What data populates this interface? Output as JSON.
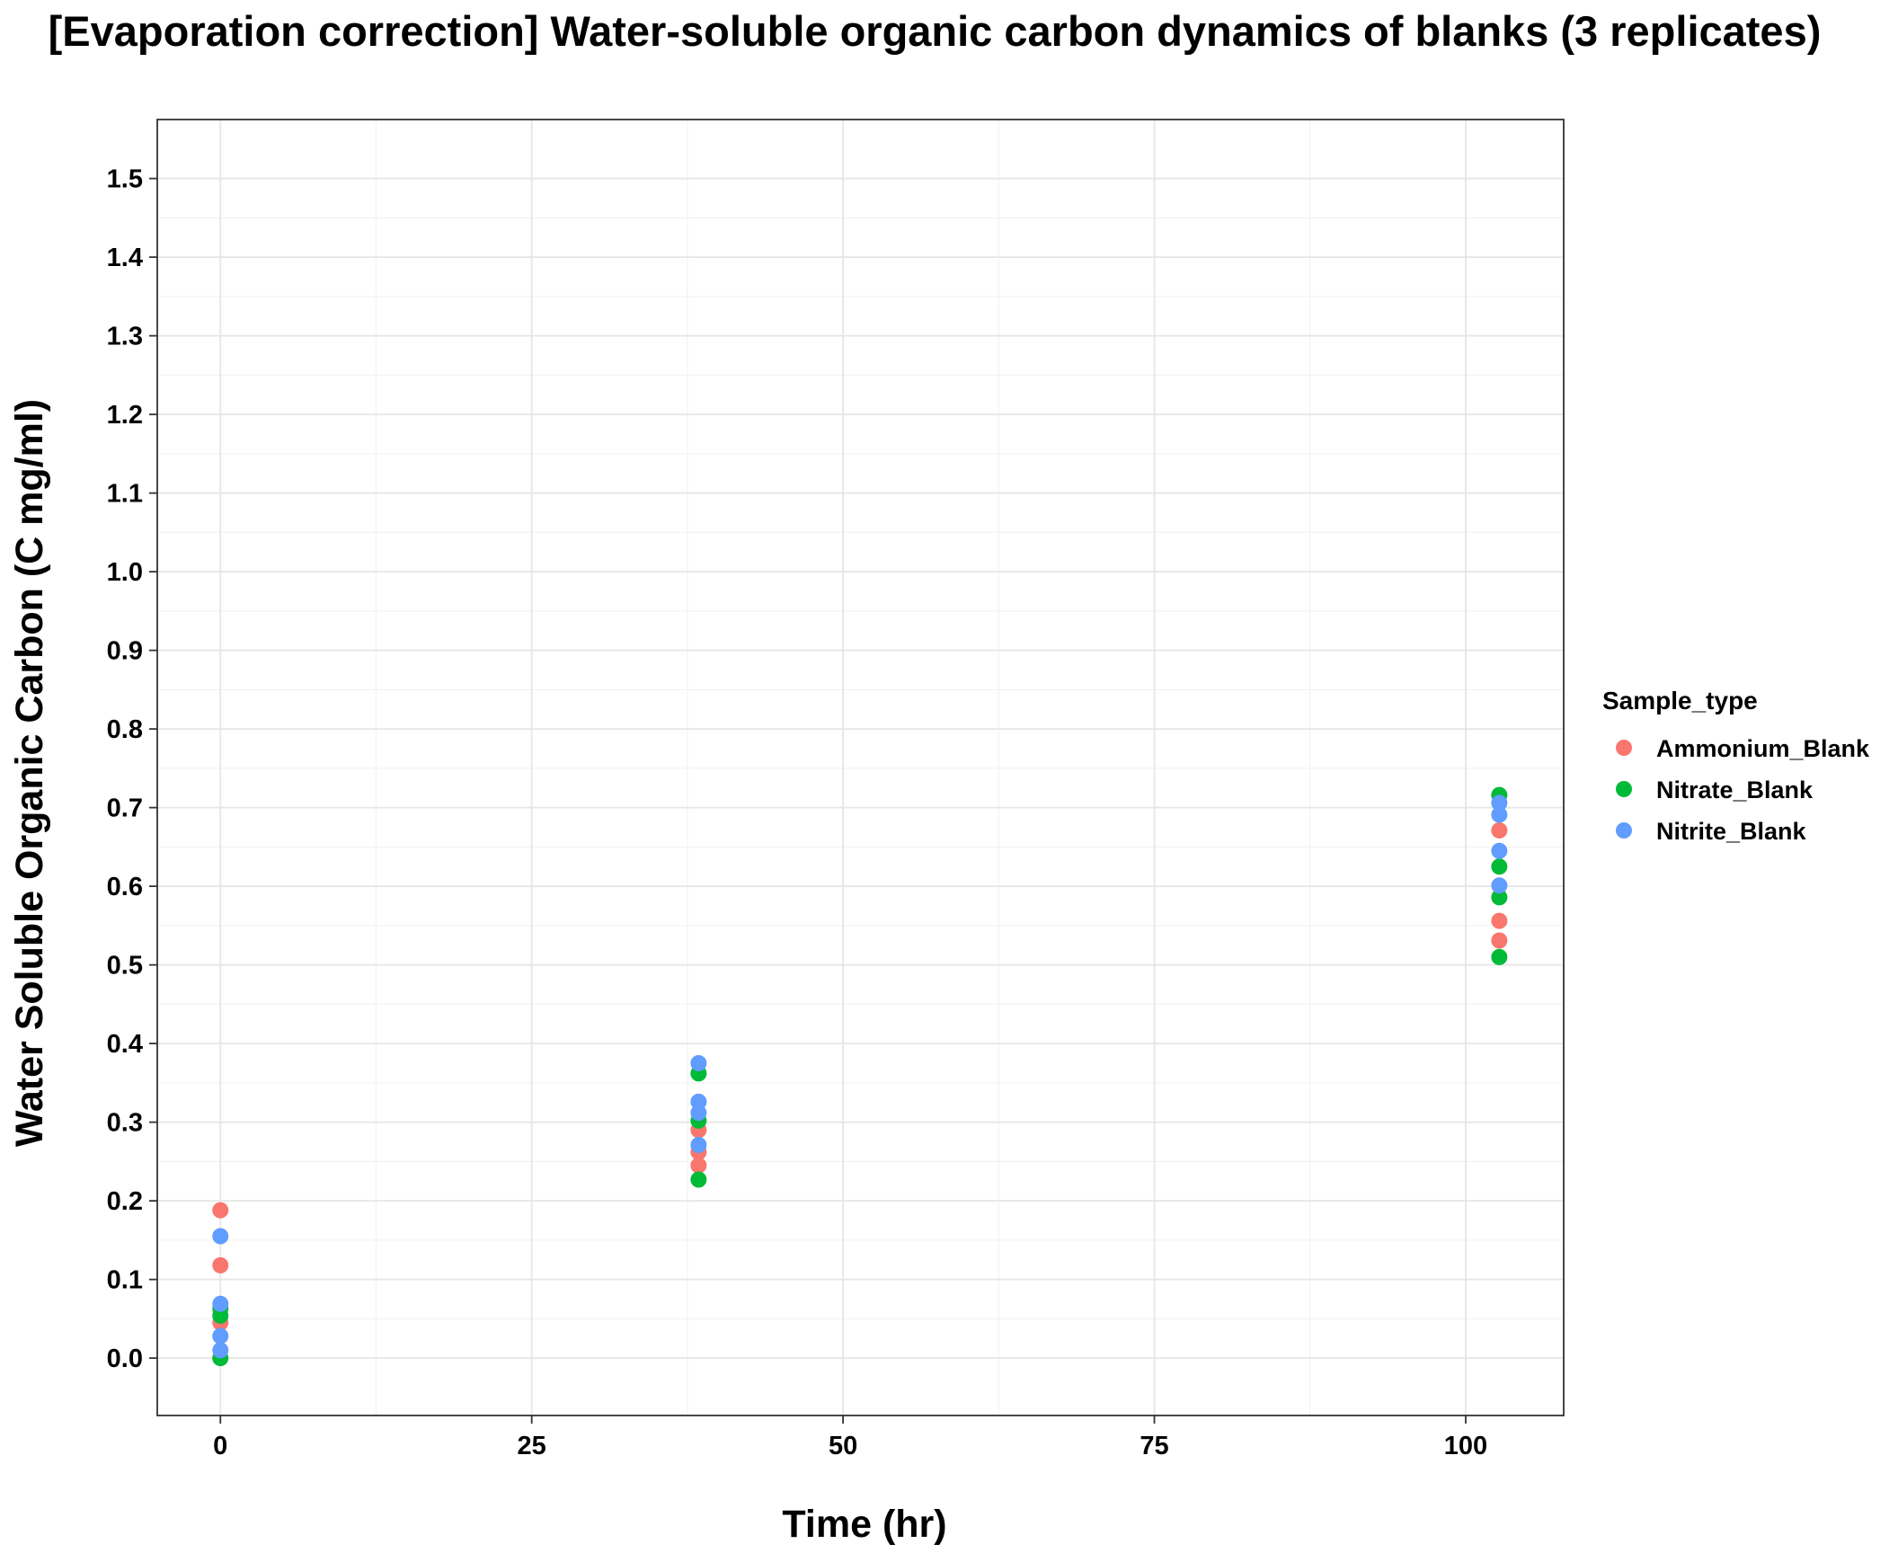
{
  "chart_data": {
    "type": "scatter",
    "title": "[Evaporation correction] Water-soluble organic carbon dynamics of blanks (3 replicates)",
    "xlabel": "Time (hr)",
    "ylabel": "Water Soluble Organic Carbon (C mg/ml)",
    "xlim": [
      -5.07,
      107.87
    ],
    "ylim": [
      -0.073,
      1.575
    ],
    "x_ticks": [
      0,
      25,
      50,
      75,
      100
    ],
    "x_tick_labels": [
      "0",
      "25",
      "50",
      "75",
      "100"
    ],
    "y_ticks": [
      0.0,
      0.1,
      0.2,
      0.3,
      0.4,
      0.5,
      0.6,
      0.7,
      0.8,
      0.9,
      1.0,
      1.1,
      1.2,
      1.3,
      1.4,
      1.5
    ],
    "y_tick_labels": [
      "0.0",
      "0.1",
      "0.2",
      "0.3",
      "0.4",
      "0.5",
      "0.6",
      "0.7",
      "0.8",
      "0.9",
      "1.0",
      "1.1",
      "1.2",
      "1.3",
      "1.4",
      "1.5"
    ],
    "grid": true,
    "legend": {
      "title": "Sample_type",
      "position": "right"
    },
    "series": [
      {
        "name": "Ammonium_Blank",
        "color": "#F8766D",
        "points": [
          {
            "x": 0,
            "y": 0.188
          },
          {
            "x": 0,
            "y": 0.118
          },
          {
            "x": 0,
            "y": 0.045
          },
          {
            "x": 38.4,
            "y": 0.29
          },
          {
            "x": 38.4,
            "y": 0.262
          },
          {
            "x": 38.4,
            "y": 0.245
          },
          {
            "x": 102.7,
            "y": 0.671
          },
          {
            "x": 102.7,
            "y": 0.556
          },
          {
            "x": 102.7,
            "y": 0.531
          }
        ]
      },
      {
        "name": "Nitrate_Blank",
        "color": "#00BA38",
        "points": [
          {
            "x": 0,
            "y": 0.063
          },
          {
            "x": 0,
            "y": 0.054
          },
          {
            "x": 0,
            "y": 0.0
          },
          {
            "x": 38.4,
            "y": 0.362
          },
          {
            "x": 38.4,
            "y": 0.302
          },
          {
            "x": 38.4,
            "y": 0.227
          },
          {
            "x": 102.7,
            "y": 0.716
          },
          {
            "x": 102.7,
            "y": 0.625
          },
          {
            "x": 102.7,
            "y": 0.586
          },
          {
            "x": 102.7,
            "y": 0.51
          }
        ]
      },
      {
        "name": "Nitrite_Blank",
        "color": "#619CFF",
        "points": [
          {
            "x": 0,
            "y": 0.155
          },
          {
            "x": 0,
            "y": 0.069
          },
          {
            "x": 0,
            "y": 0.028
          },
          {
            "x": 0,
            "y": 0.01
          },
          {
            "x": 38.4,
            "y": 0.375
          },
          {
            "x": 38.4,
            "y": 0.326
          },
          {
            "x": 38.4,
            "y": 0.312
          },
          {
            "x": 38.4,
            "y": 0.271
          },
          {
            "x": 102.7,
            "y": 0.706
          },
          {
            "x": 102.7,
            "y": 0.691
          },
          {
            "x": 102.7,
            "y": 0.645
          },
          {
            "x": 102.7,
            "y": 0.601
          }
        ]
      }
    ]
  }
}
